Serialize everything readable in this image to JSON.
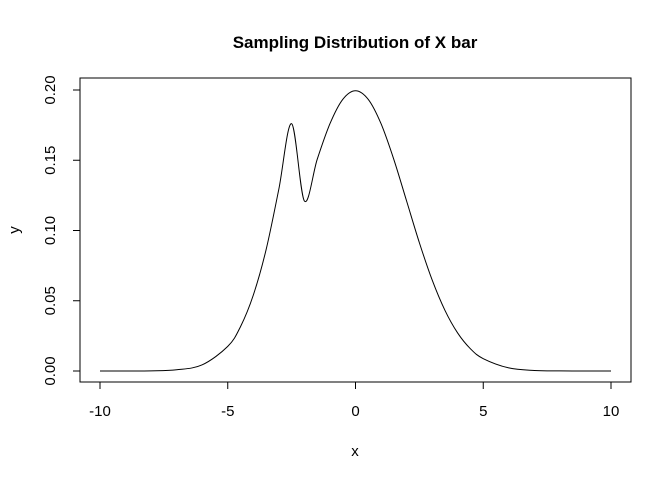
{
  "chart_data": {
    "type": "line",
    "title": "Sampling Distribution of X bar",
    "xlabel": "x",
    "ylabel": "y",
    "xlim": [
      -10,
      10
    ],
    "ylim": [
      0,
      0.2
    ],
    "x_ticks": [
      -10,
      -5,
      0,
      5,
      10
    ],
    "x_tick_labels": [
      "-10",
      "-5",
      "0",
      "5",
      "10"
    ],
    "y_ticks": [
      0,
      0.05,
      0.1,
      0.15,
      0.2
    ],
    "y_tick_labels": [
      "0.00",
      "0.05",
      "0.10",
      "0.15",
      "0.20"
    ],
    "grid": false,
    "legend": "none",
    "series": [
      {
        "color": "#000000",
        "x": [
          -10,
          -9,
          -8,
          -7,
          -6,
          -5,
          -4.5,
          -4,
          -3.5,
          -3,
          -2.5,
          -2,
          -1.5,
          -1,
          -0.5,
          0,
          0.5,
          1,
          1.5,
          2,
          2.5,
          3,
          3.5,
          4,
          4.5,
          5,
          6,
          7,
          8,
          9,
          10
        ],
        "y": [
          0.0,
          0.0,
          0.0001,
          0.0009,
          0.0044,
          0.0175,
          0.0316,
          0.054,
          0.0863,
          0.1295,
          0.176,
          0.121,
          0.1506,
          0.176,
          0.1933,
          0.1995,
          0.1933,
          0.176,
          0.1506,
          0.121,
          0.0913,
          0.0648,
          0.0432,
          0.027,
          0.0158,
          0.0088,
          0.0022,
          0.0004,
          0.0001,
          0.0,
          0.0
        ]
      }
    ]
  }
}
